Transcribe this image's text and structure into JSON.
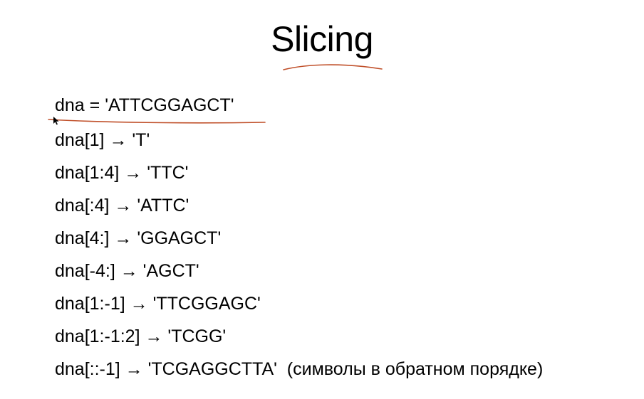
{
  "slide": {
    "title": "Slicing",
    "lines": [
      "dna = 'ATTCGGAGCT'",
      "dna[1] → 'T'",
      "dna[1:4] → 'TTC'",
      "dna[:4] → 'ATTC'",
      "dna[4:] → 'GGAGCT'",
      "dna[-4:] → 'AGCT'",
      "dna[1:-1] → 'TTCGGAGC'",
      "dna[1:-1:2] → 'TCGG'",
      "dna[::-1] → 'TCGAGGCTTA'  (символы в обратном порядке)"
    ]
  },
  "annotations": {
    "ink_color": "#c0502a"
  }
}
